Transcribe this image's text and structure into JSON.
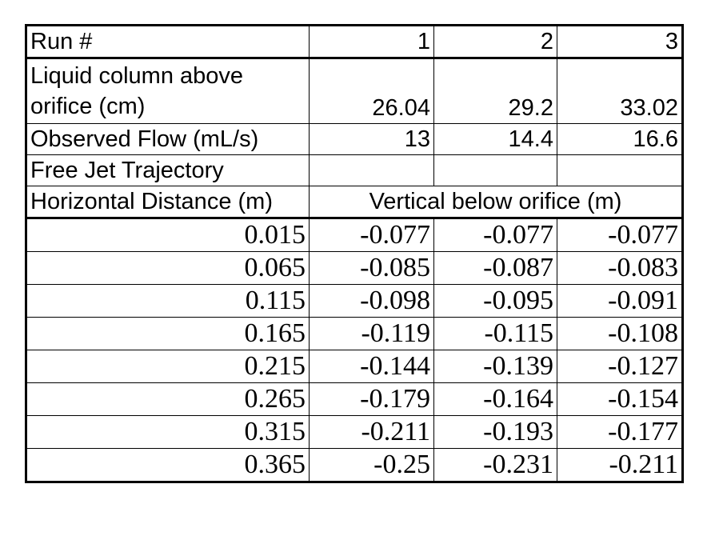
{
  "header": {
    "run_label": "Run #",
    "runs": [
      "1",
      "2",
      "3"
    ]
  },
  "liquid_column": {
    "label_line1": "Liquid column above",
    "label_line2": "orifice (cm)",
    "values": [
      "26.04",
      "29.2",
      "33.02"
    ]
  },
  "observed_flow": {
    "label": "Observed Flow (mL/s)",
    "values": [
      "13",
      "14.4",
      "16.6"
    ]
  },
  "free_jet": {
    "label": "Free Jet Trajectory"
  },
  "trajectory_header": {
    "horizontal_label": "Horizontal Distance (m)",
    "vertical_label": "Vertical below orifice (m)"
  },
  "rows": [
    {
      "x": "0.015",
      "v": [
        "-0.077",
        "-0.077",
        "-0.077"
      ]
    },
    {
      "x": "0.065",
      "v": [
        "-0.085",
        "-0.087",
        "-0.083"
      ]
    },
    {
      "x": "0.115",
      "v": [
        "-0.098",
        "-0.095",
        "-0.091"
      ]
    },
    {
      "x": "0.165",
      "v": [
        "-0.119",
        "-0.115",
        "-0.108"
      ]
    },
    {
      "x": "0.215",
      "v": [
        "-0.144",
        "-0.139",
        "-0.127"
      ]
    },
    {
      "x": "0.265",
      "v": [
        "-0.179",
        "-0.164",
        "-0.154"
      ]
    },
    {
      "x": "0.315",
      "v": [
        "-0.211",
        "-0.193",
        "-0.177"
      ]
    },
    {
      "x": "0.365",
      "v": [
        "-0.25",
        "-0.231",
        "-0.211"
      ]
    }
  ]
}
